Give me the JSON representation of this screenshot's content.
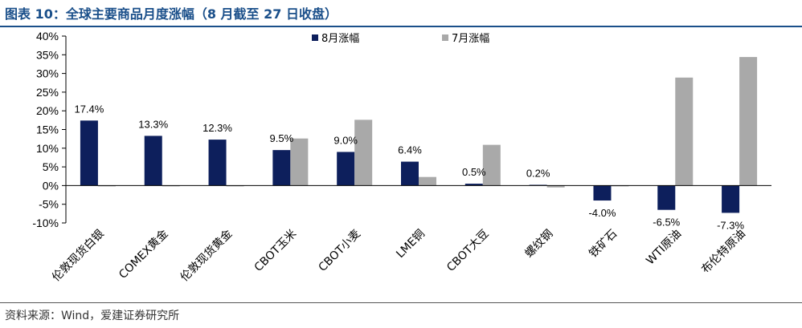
{
  "title": "图表 10：全球主要商品月度涨幅（8 月截至 27 日收盘）",
  "source": "资料来源：Wind，爱建证券研究所",
  "colors": {
    "series_0": "#0d1f5c",
    "series_1": "#a9a9a9",
    "title": "#1a4f8a"
  },
  "chart_data": {
    "type": "bar",
    "categories": [
      "伦敦现货白银",
      "COMEX黄金",
      "伦敦现货黄金",
      "CBOT玉米",
      "CBOT小麦",
      "LME铜",
      "CBOT大豆",
      "螺纹钢",
      "铁矿石",
      "WTI原油",
      "布伦特原油"
    ],
    "series": [
      {
        "name": "8月涨幅",
        "values": [
          17.4,
          13.3,
          12.3,
          9.5,
          9.0,
          6.4,
          0.5,
          0.2,
          -4.0,
          -6.5,
          -7.3
        ],
        "labels": [
          "17.4%",
          "13.3%",
          "12.3%",
          "9.5%",
          "9.0%",
          "6.4%",
          "0.5%",
          "0.2%",
          "-4.0%",
          "-6.5%",
          "-7.3%"
        ]
      },
      {
        "name": "7月涨幅",
        "values": [
          0.0,
          -0.2,
          0.0,
          12.6,
          17.6,
          2.3,
          10.9,
          -0.5,
          -0.1,
          28.9,
          34.4
        ]
      }
    ],
    "ylim": [
      -10,
      40
    ],
    "yticks": [
      "-10%",
      "-5%",
      "0%",
      "5%",
      "10%",
      "15%",
      "20%",
      "25%",
      "30%",
      "35%",
      "40%"
    ],
    "legend_position": "top-center",
    "grid": false
  }
}
